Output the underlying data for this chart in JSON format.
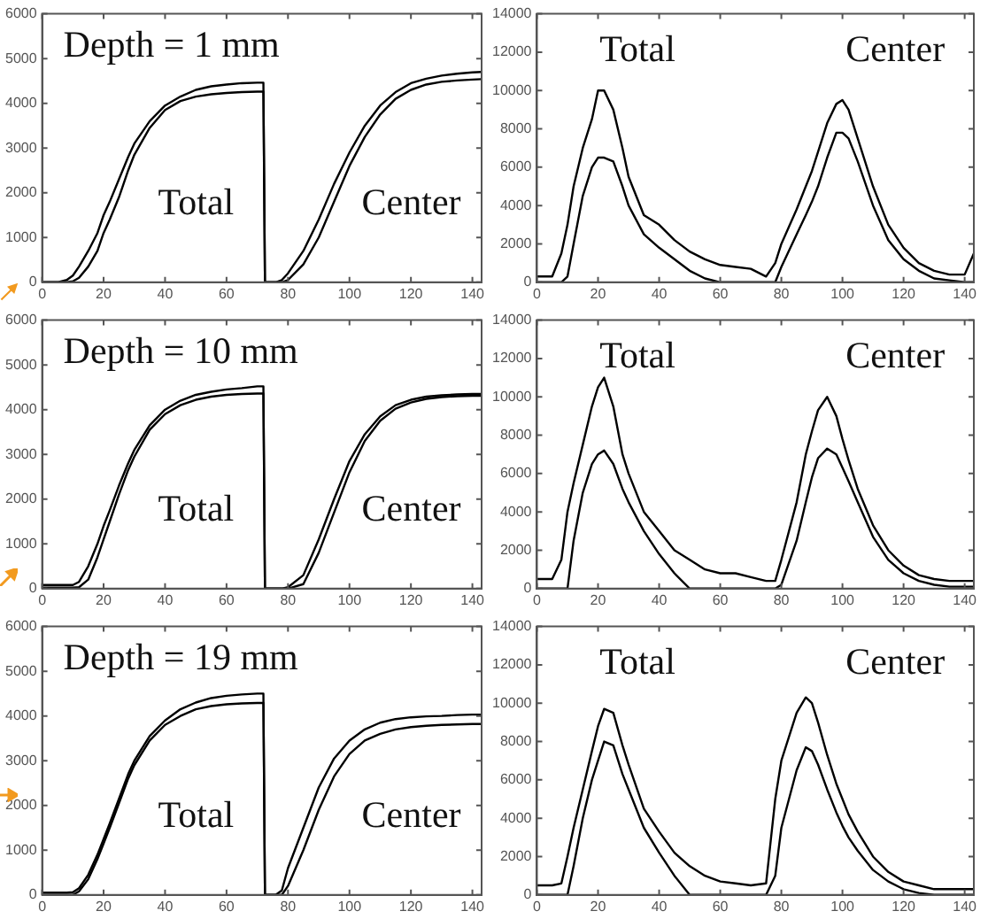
{
  "chart_data": [
    {
      "type": "line",
      "title": "Depth = 1 mm",
      "annotations": [
        "Total",
        "Center"
      ],
      "x": [
        0,
        5,
        8,
        10,
        12,
        15,
        18,
        20,
        22,
        25,
        28,
        30,
        35,
        40,
        45,
        50,
        55,
        60,
        65,
        70,
        72,
        72.5,
        73,
        75,
        76,
        78,
        80,
        85,
        90,
        95,
        100,
        105,
        110,
        115,
        120,
        125,
        130,
        135,
        140,
        143
      ],
      "series": [
        {
          "color": "#000000",
          "values": [
            0,
            0,
            50,
            150,
            350,
            700,
            1100,
            1500,
            1800,
            2300,
            2800,
            3100,
            3600,
            3950,
            4150,
            4300,
            4380,
            4420,
            4450,
            4460,
            4460,
            0,
            0,
            0,
            0,
            50,
            200,
            700,
            1400,
            2200,
            2900,
            3500,
            3950,
            4250,
            4450,
            4550,
            4620,
            4660,
            4690,
            4700
          ]
        },
        {
          "color": "#000000",
          "values": [
            0,
            0,
            0,
            20,
            100,
            350,
            700,
            1100,
            1400,
            1900,
            2500,
            2850,
            3450,
            3850,
            4050,
            4150,
            4200,
            4230,
            4250,
            4260,
            4260,
            0,
            0,
            0,
            0,
            0,
            50,
            400,
            1000,
            1800,
            2600,
            3250,
            3750,
            4100,
            4300,
            4420,
            4480,
            4510,
            4530,
            4540
          ]
        }
      ],
      "xlim": [
        0,
        143
      ],
      "xticks": [
        0,
        20,
        40,
        60,
        80,
        100,
        120,
        140
      ],
      "ylim": [
        0,
        6000
      ],
      "yticks": [
        0,
        1000,
        2000,
        3000,
        4000,
        5000,
        6000
      ],
      "line_style": "solid",
      "marker": "none"
    },
    {
      "type": "line",
      "annotations": [
        "Total",
        "Center"
      ],
      "x": [
        0,
        5,
        8,
        10,
        12,
        15,
        18,
        20,
        22,
        25,
        28,
        30,
        35,
        40,
        45,
        50,
        55,
        60,
        65,
        70,
        75,
        78,
        80,
        85,
        88,
        90,
        92,
        95,
        98,
        100,
        102,
        105,
        110,
        115,
        120,
        125,
        130,
        135,
        140,
        143
      ],
      "series": [
        {
          "color": "#000000",
          "values": [
            300,
            300,
            1500,
            3000,
            5000,
            7000,
            8500,
            10000,
            10000,
            9000,
            7000,
            5500,
            3500,
            3000,
            2200,
            1600,
            1200,
            900,
            800,
            700,
            300,
            1000,
            2000,
            3800,
            5000,
            5800,
            6800,
            8300,
            9300,
            9500,
            9000,
            7500,
            5000,
            3000,
            1800,
            1000,
            600,
            400,
            400,
            1500
          ]
        },
        {
          "color": "#000000",
          "values": [
            0,
            0,
            0,
            300,
            2000,
            4500,
            6000,
            6500,
            6500,
            6300,
            5000,
            4000,
            2500,
            1800,
            1200,
            600,
            200,
            0,
            0,
            0,
            0,
            0,
            800,
            2500,
            3500,
            4200,
            5000,
            6500,
            7800,
            7800,
            7500,
            6300,
            4000,
            2200,
            1200,
            600,
            200,
            100,
            0,
            0
          ]
        }
      ],
      "xlim": [
        0,
        143
      ],
      "xticks": [
        0,
        20,
        40,
        60,
        80,
        100,
        120,
        140
      ],
      "ylim": [
        0,
        14000
      ],
      "yticks": [
        0,
        2000,
        4000,
        6000,
        8000,
        10000,
        12000,
        14000
      ],
      "line_style": "solid",
      "marker": "none"
    },
    {
      "type": "line",
      "title": "Depth = 10 mm",
      "annotations": [
        "Total",
        "Center"
      ],
      "x": [
        0,
        5,
        8,
        10,
        12,
        15,
        18,
        20,
        22,
        25,
        28,
        30,
        35,
        40,
        45,
        50,
        55,
        60,
        65,
        70,
        72,
        72.5,
        73,
        75,
        76,
        78,
        80,
        85,
        90,
        95,
        100,
        105,
        110,
        115,
        120,
        125,
        130,
        135,
        140,
        143
      ],
      "series": [
        {
          "color": "#000000",
          "values": [
            80,
            80,
            80,
            80,
            150,
            500,
            1000,
            1400,
            1750,
            2300,
            2800,
            3100,
            3650,
            4000,
            4200,
            4330,
            4400,
            4450,
            4480,
            4520,
            4520,
            0,
            0,
            0,
            0,
            0,
            30,
            300,
            1100,
            2000,
            2850,
            3450,
            3850,
            4100,
            4220,
            4290,
            4320,
            4340,
            4350,
            4350
          ]
        },
        {
          "color": "#000000",
          "values": [
            20,
            20,
            20,
            20,
            30,
            200,
            700,
            1100,
            1500,
            2100,
            2650,
            2950,
            3550,
            3900,
            4100,
            4220,
            4290,
            4330,
            4350,
            4360,
            4360,
            0,
            0,
            0,
            0,
            0,
            0,
            100,
            800,
            1700,
            2600,
            3300,
            3750,
            4020,
            4160,
            4240,
            4280,
            4300,
            4310,
            4310
          ]
        }
      ],
      "xlim": [
        0,
        143
      ],
      "xticks": [
        0,
        20,
        40,
        60,
        80,
        100,
        120,
        140
      ],
      "ylim": [
        0,
        6000
      ],
      "yticks": [
        0,
        1000,
        2000,
        3000,
        4000,
        5000,
        6000
      ],
      "line_style": "solid",
      "marker": "none"
    },
    {
      "type": "line",
      "annotations": [
        "Total",
        "Center"
      ],
      "x": [
        0,
        5,
        8,
        10,
        12,
        15,
        18,
        20,
        22,
        25,
        28,
        30,
        35,
        40,
        45,
        50,
        55,
        60,
        65,
        70,
        75,
        78,
        80,
        85,
        88,
        90,
        92,
        95,
        98,
        100,
        102,
        105,
        110,
        115,
        120,
        125,
        130,
        135,
        140,
        143
      ],
      "series": [
        {
          "color": "#000000",
          "values": [
            500,
            500,
            1500,
            4000,
            5500,
            7500,
            9500,
            10500,
            11000,
            9500,
            7000,
            6000,
            4000,
            3000,
            2000,
            1500,
            1000,
            800,
            800,
            600,
            400,
            400,
            1500,
            4500,
            7000,
            8200,
            9300,
            10000,
            9000,
            7800,
            6700,
            5200,
            3300,
            2000,
            1200,
            700,
            500,
            400,
            400,
            400
          ]
        },
        {
          "color": "#000000",
          "values": [
            0,
            0,
            0,
            0,
            2500,
            5000,
            6500,
            7000,
            7200,
            6500,
            5200,
            4500,
            3000,
            1800,
            800,
            0,
            0,
            0,
            0,
            0,
            0,
            0,
            200,
            2500,
            4500,
            5800,
            6800,
            7300,
            7000,
            6300,
            5600,
            4500,
            2700,
            1500,
            800,
            400,
            200,
            100,
            100,
            100
          ]
        }
      ],
      "xlim": [
        0,
        143
      ],
      "xticks": [
        0,
        20,
        40,
        60,
        80,
        100,
        120,
        140
      ],
      "ylim": [
        0,
        14000
      ],
      "yticks": [
        0,
        2000,
        4000,
        6000,
        8000,
        10000,
        12000,
        14000
      ],
      "line_style": "solid",
      "marker": "none"
    },
    {
      "type": "line",
      "title": "Depth = 19 mm",
      "annotations": [
        "Total",
        "Center"
      ],
      "x": [
        0,
        5,
        8,
        10,
        12,
        15,
        18,
        20,
        22,
        25,
        28,
        30,
        35,
        40,
        45,
        50,
        55,
        60,
        65,
        70,
        72,
        72.5,
        73,
        75,
        76,
        78,
        80,
        85,
        90,
        95,
        100,
        105,
        110,
        115,
        120,
        125,
        130,
        135,
        140,
        143
      ],
      "series": [
        {
          "color": "#000000",
          "values": [
            50,
            50,
            50,
            60,
            150,
            450,
            900,
            1250,
            1600,
            2150,
            2700,
            3000,
            3550,
            3900,
            4150,
            4300,
            4400,
            4450,
            4480,
            4500,
            4500,
            0,
            0,
            0,
            0,
            100,
            600,
            1500,
            2400,
            3050,
            3450,
            3700,
            3850,
            3930,
            3970,
            3990,
            4000,
            4020,
            4030,
            4030
          ]
        },
        {
          "color": "#000000",
          "values": [
            0,
            0,
            0,
            0,
            80,
            350,
            800,
            1150,
            1500,
            2050,
            2600,
            2900,
            3450,
            3800,
            4000,
            4150,
            4220,
            4260,
            4280,
            4290,
            4290,
            0,
            0,
            0,
            0,
            0,
            200,
            1000,
            1900,
            2650,
            3150,
            3450,
            3600,
            3700,
            3750,
            3780,
            3800,
            3810,
            3820,
            3820
          ]
        }
      ],
      "xlim": [
        0,
        143
      ],
      "xticks": [
        0,
        20,
        40,
        60,
        80,
        100,
        120,
        140
      ],
      "ylim": [
        0,
        6000
      ],
      "yticks": [
        0,
        1000,
        2000,
        3000,
        4000,
        5000,
        6000
      ],
      "line_style": "solid",
      "marker": "none"
    },
    {
      "type": "line",
      "annotations": [
        "Total",
        "Center"
      ],
      "x": [
        0,
        5,
        8,
        10,
        12,
        15,
        18,
        20,
        22,
        25,
        28,
        30,
        35,
        40,
        45,
        50,
        55,
        60,
        65,
        70,
        75,
        78,
        80,
        85,
        88,
        90,
        92,
        95,
        98,
        100,
        102,
        105,
        110,
        115,
        120,
        125,
        130,
        135,
        140,
        143
      ],
      "series": [
        {
          "color": "#000000",
          "values": [
            500,
            500,
            600,
            2000,
            3500,
            5500,
            7500,
            8800,
            9700,
            9500,
            7800,
            6800,
            4500,
            3300,
            2200,
            1500,
            1000,
            700,
            600,
            500,
            600,
            5000,
            7000,
            9500,
            10300,
            10000,
            9000,
            7300,
            5800,
            5000,
            4200,
            3300,
            2000,
            1200,
            700,
            500,
            300,
            300,
            300,
            300
          ]
        },
        {
          "color": "#000000",
          "values": [
            0,
            0,
            0,
            0,
            1500,
            4000,
            6000,
            7000,
            8000,
            7800,
            6300,
            5500,
            3500,
            2200,
            1000,
            0,
            0,
            0,
            0,
            0,
            0,
            1000,
            3500,
            6500,
            7700,
            7500,
            6800,
            5500,
            4300,
            3600,
            3000,
            2300,
            1300,
            700,
            300,
            100,
            0,
            0,
            0,
            0
          ]
        }
      ],
      "xlim": [
        0,
        143
      ],
      "xticks": [
        0,
        20,
        40,
        60,
        80,
        100,
        120,
        140
      ],
      "ylim": [
        0,
        14000
      ],
      "yticks": [
        0,
        2000,
        4000,
        6000,
        8000,
        10000,
        12000,
        14000
      ],
      "line_style": "solid",
      "marker": "none"
    }
  ]
}
